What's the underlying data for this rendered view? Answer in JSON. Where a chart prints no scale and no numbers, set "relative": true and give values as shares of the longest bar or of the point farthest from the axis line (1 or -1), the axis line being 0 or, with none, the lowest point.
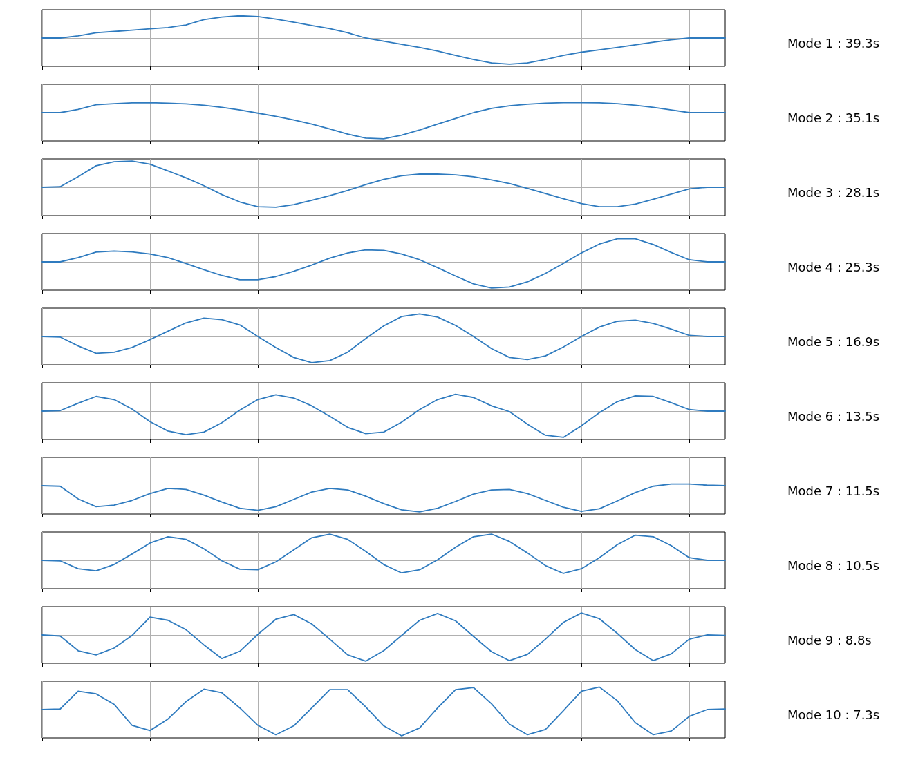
{
  "chart_data": [
    {
      "type": "line",
      "relative": true,
      "grid": "x",
      "color": "#2f7bbf",
      "annotations": [
        "Mode 1 : 39.3s"
      ],
      "categories": [
        null,
        null,
        null,
        null,
        null,
        null,
        null,
        null,
        null,
        null,
        null,
        null,
        null,
        null,
        null,
        null,
        null,
        null,
        null,
        null,
        null,
        null,
        null,
        null,
        null,
        null,
        null,
        null,
        null,
        null,
        null,
        null,
        null,
        null,
        null,
        null,
        null,
        null,
        null
      ],
      "values": [
        0,
        0,
        0.08,
        0.2,
        0.25,
        0.3,
        0.35,
        0.4,
        0.5,
        0.7,
        0.8,
        0.85,
        0.82,
        0.72,
        0.6,
        0.48,
        0.36,
        0.2,
        0,
        -0.12,
        -0.24,
        -0.36,
        -0.5,
        -0.66,
        -0.82,
        -0.95,
        -1,
        -0.95,
        -0.82,
        -0.66,
        -0.54,
        -0.45,
        -0.36,
        -0.26,
        -0.16,
        -0.07,
        0,
        0,
        0
      ]
    },
    {
      "type": "line",
      "relative": true,
      "grid": "x",
      "color": "#2f7bbf",
      "annotations": [
        "Mode 2 : 35.1s"
      ],
      "categories": [
        null,
        null,
        null,
        null,
        null,
        null,
        null,
        null,
        null,
        null,
        null,
        null,
        null,
        null,
        null,
        null,
        null,
        null,
        null,
        null,
        null,
        null,
        null,
        null,
        null,
        null,
        null,
        null,
        null,
        null,
        null,
        null,
        null,
        null,
        null,
        null,
        null,
        null,
        null
      ],
      "values": [
        0,
        0,
        0.12,
        0.3,
        0.34,
        0.37,
        0.38,
        0.36,
        0.33,
        0.28,
        0.2,
        0.1,
        -0.02,
        -0.14,
        -0.28,
        -0.44,
        -0.62,
        -0.82,
        -0.97,
        -1,
        -0.86,
        -0.66,
        -0.44,
        -0.22,
        0,
        0.16,
        0.26,
        0.32,
        0.36,
        0.38,
        0.38,
        0.37,
        0.34,
        0.28,
        0.2,
        0.1,
        0,
        0,
        0
      ]
    },
    {
      "type": "line",
      "relative": true,
      "grid": "x",
      "color": "#2f7bbf",
      "annotations": [
        "Mode 3 : 28.1s"
      ],
      "categories": [
        null,
        null,
        null,
        null,
        null,
        null,
        null,
        null,
        null,
        null,
        null,
        null,
        null,
        null,
        null,
        null,
        null,
        null,
        null,
        null,
        null,
        null,
        null,
        null,
        null,
        null,
        null,
        null,
        null,
        null,
        null,
        null,
        null,
        null,
        null,
        null,
        null,
        null,
        null
      ],
      "values": [
        0,
        0.02,
        0.4,
        0.82,
        0.97,
        1,
        0.88,
        0.62,
        0.36,
        0.06,
        -0.28,
        -0.56,
        -0.74,
        -0.76,
        -0.66,
        -0.5,
        -0.32,
        -0.12,
        0.1,
        0.3,
        0.44,
        0.5,
        0.5,
        0.47,
        0.4,
        0.28,
        0.14,
        -0.04,
        -0.24,
        -0.44,
        -0.62,
        -0.74,
        -0.74,
        -0.64,
        -0.46,
        -0.26,
        -0.06,
        0,
        0
      ]
    },
    {
      "type": "line",
      "relative": true,
      "grid": "x",
      "color": "#2f7bbf",
      "annotations": [
        "Mode 4 : 25.3s"
      ],
      "categories": [
        null,
        null,
        null,
        null,
        null,
        null,
        null,
        null,
        null,
        null,
        null,
        null,
        null,
        null,
        null,
        null,
        null,
        null,
        null,
        null,
        null,
        null,
        null,
        null,
        null,
        null,
        null,
        null,
        null,
        null,
        null,
        null,
        null,
        null,
        null,
        null,
        null,
        null,
        null
      ],
      "values": [
        0,
        0,
        0.16,
        0.37,
        0.41,
        0.38,
        0.3,
        0.16,
        -0.06,
        -0.3,
        -0.52,
        -0.68,
        -0.68,
        -0.56,
        -0.36,
        -0.12,
        0.14,
        0.34,
        0.46,
        0.44,
        0.3,
        0.08,
        -0.22,
        -0.54,
        -0.84,
        -1,
        -0.96,
        -0.76,
        -0.44,
        -0.06,
        0.34,
        0.68,
        0.88,
        0.88,
        0.66,
        0.36,
        0.08,
        0,
        0
      ]
    },
    {
      "type": "line",
      "relative": true,
      "grid": "x",
      "color": "#2f7bbf",
      "annotations": [
        "Mode 5 : 16.9s"
      ],
      "categories": [
        null,
        null,
        null,
        null,
        null,
        null,
        null,
        null,
        null,
        null,
        null,
        null,
        null,
        null,
        null,
        null,
        null,
        null,
        null,
        null,
        null,
        null,
        null,
        null,
        null,
        null,
        null,
        null,
        null,
        null,
        null,
        null,
        null,
        null,
        null,
        null,
        null,
        null,
        null
      ],
      "values": [
        0,
        -0.02,
        -0.36,
        -0.64,
        -0.6,
        -0.42,
        -0.12,
        0.2,
        0.52,
        0.7,
        0.64,
        0.44,
        0,
        -0.42,
        -0.8,
        -1,
        -0.92,
        -0.6,
        -0.08,
        0.4,
        0.76,
        0.86,
        0.74,
        0.42,
        0,
        -0.46,
        -0.8,
        -0.88,
        -0.74,
        -0.4,
        0,
        0.36,
        0.58,
        0.62,
        0.5,
        0.28,
        0.04,
        0,
        0
      ]
    },
    {
      "type": "line",
      "relative": true,
      "grid": "x",
      "color": "#2f7bbf",
      "annotations": [
        "Mode 6 : 13.5s"
      ],
      "categories": [
        null,
        null,
        null,
        null,
        null,
        null,
        null,
        null,
        null,
        null,
        null,
        null,
        null,
        null,
        null,
        null,
        null,
        null,
        null,
        null,
        null,
        null,
        null,
        null,
        null,
        null,
        null,
        null,
        null,
        null,
        null,
        null,
        null,
        null,
        null,
        null,
        null,
        null,
        null
      ],
      "values": [
        0,
        0.02,
        0.3,
        0.56,
        0.44,
        0.08,
        -0.4,
        -0.76,
        -0.9,
        -0.8,
        -0.44,
        0.04,
        0.44,
        0.62,
        0.5,
        0.2,
        -0.2,
        -0.62,
        -0.86,
        -0.8,
        -0.42,
        0.06,
        0.44,
        0.64,
        0.52,
        0.2,
        -0.02,
        -0.5,
        -0.92,
        -1,
        -0.56,
        -0.06,
        0.36,
        0.58,
        0.56,
        0.32,
        0.06,
        0,
        0
      ]
    },
    {
      "type": "line",
      "relative": true,
      "grid": "x",
      "color": "#2f7bbf",
      "annotations": [
        "Mode 7 : 11.5s"
      ],
      "categories": [
        null,
        null,
        null,
        null,
        null,
        null,
        null,
        null,
        null,
        null,
        null,
        null,
        null,
        null,
        null,
        null,
        null,
        null,
        null,
        null,
        null,
        null,
        null,
        null,
        null,
        null,
        null,
        null,
        null,
        null,
        null,
        null,
        null,
        null,
        null,
        null,
        null,
        null,
        null
      ],
      "values": [
        0,
        -0.02,
        -0.5,
        -0.8,
        -0.74,
        -0.56,
        -0.3,
        -0.1,
        -0.14,
        -0.36,
        -0.62,
        -0.86,
        -0.94,
        -0.8,
        -0.52,
        -0.24,
        -0.1,
        -0.16,
        -0.4,
        -0.68,
        -0.92,
        -1,
        -0.86,
        -0.6,
        -0.32,
        -0.16,
        -0.14,
        -0.3,
        -0.56,
        -0.82,
        -0.98,
        -0.88,
        -0.58,
        -0.26,
        -0.02,
        0.06,
        0.06,
        0.02,
        0
      ]
    },
    {
      "type": "line",
      "relative": true,
      "grid": "x",
      "color": "#2f7bbf",
      "annotations": [
        "Mode 8 : 10.5s"
      ],
      "categories": [
        null,
        null,
        null,
        null,
        null,
        null,
        null,
        null,
        null,
        null,
        null,
        null,
        null,
        null,
        null,
        null,
        null,
        null,
        null,
        null,
        null,
        null,
        null,
        null,
        null,
        null,
        null,
        null,
        null,
        null,
        null,
        null,
        null,
        null,
        null,
        null,
        null,
        null,
        null
      ],
      "values": [
        0,
        -0.02,
        -0.32,
        -0.4,
        -0.16,
        0.24,
        0.66,
        0.9,
        0.8,
        0.44,
        -0.02,
        -0.34,
        -0.36,
        -0.06,
        0.4,
        0.86,
        1,
        0.8,
        0.34,
        -0.16,
        -0.48,
        -0.36,
        0.02,
        0.5,
        0.9,
        1,
        0.72,
        0.28,
        -0.2,
        -0.5,
        -0.32,
        0.1,
        0.6,
        0.96,
        0.9,
        0.56,
        0.1,
        0,
        0
      ]
    },
    {
      "type": "line",
      "relative": true,
      "grid": "x",
      "color": "#2f7bbf",
      "annotations": [
        "Mode 9 : 8.8s"
      ],
      "categories": [
        null,
        null,
        null,
        null,
        null,
        null,
        null,
        null,
        null,
        null,
        null,
        null,
        null,
        null,
        null,
        null,
        null,
        null,
        null,
        null,
        null,
        null,
        null,
        null,
        null,
        null,
        null,
        null,
        null,
        null,
        null,
        null,
        null,
        null,
        null,
        null,
        null,
        null,
        null
      ],
      "values": [
        0,
        -0.04,
        -0.6,
        -0.76,
        -0.5,
        -0.02,
        0.68,
        0.56,
        0.2,
        -0.38,
        -0.9,
        -0.62,
        0.02,
        0.6,
        0.78,
        0.42,
        -0.16,
        -0.76,
        -1,
        -0.6,
        -0.02,
        0.56,
        0.82,
        0.54,
        -0.06,
        -0.64,
        -0.98,
        -0.74,
        -0.16,
        0.48,
        0.84,
        0.62,
        0.06,
        -0.56,
        -0.98,
        -0.72,
        -0.16,
        0,
        -0.02
      ]
    },
    {
      "type": "line",
      "relative": true,
      "grid": "x",
      "color": "#2f7bbf",
      "annotations": [
        "Mode 10 : 7.3s"
      ],
      "categories": [
        null,
        null,
        null,
        null,
        null,
        null,
        null,
        null,
        null,
        null,
        null,
        null,
        null,
        null,
        null,
        null,
        null,
        null,
        null,
        null,
        null,
        null,
        null,
        null,
        null,
        null,
        null,
        null,
        null,
        null,
        null,
        null,
        null,
        null,
        null,
        null,
        null,
        null,
        null
      ],
      "values": [
        0,
        0.02,
        0.7,
        0.6,
        0.2,
        -0.6,
        -0.8,
        -0.36,
        0.3,
        0.78,
        0.64,
        0.06,
        -0.6,
        -0.96,
        -0.62,
        0.06,
        0.76,
        0.76,
        0.1,
        -0.62,
        -1,
        -0.7,
        0.06,
        0.76,
        0.84,
        0.22,
        -0.56,
        -0.96,
        -0.76,
        -0.04,
        0.7,
        0.86,
        0.34,
        -0.5,
        -0.96,
        -0.82,
        -0.26,
        0,
        0.02
      ]
    }
  ]
}
